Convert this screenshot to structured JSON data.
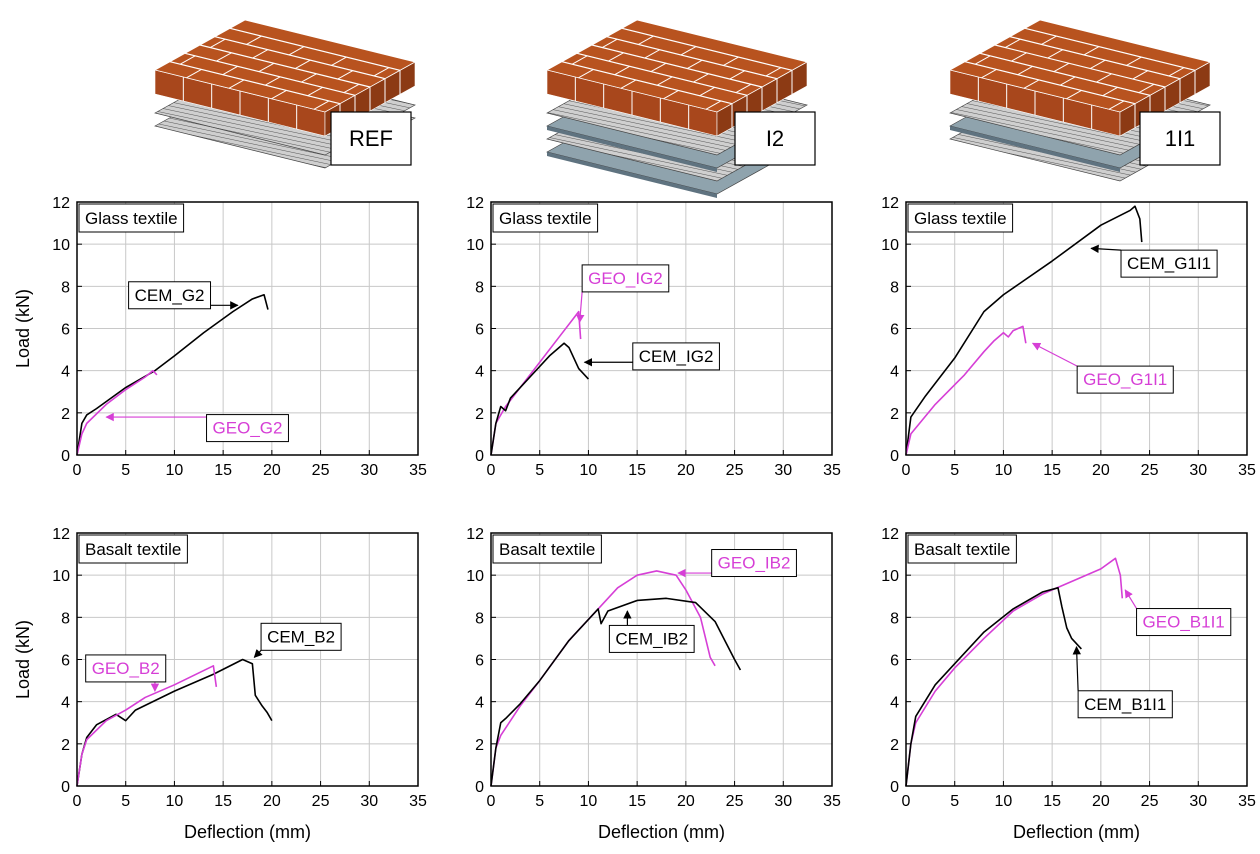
{
  "illustrations": [
    "REF",
    "I2",
    "1I1"
  ],
  "chart_data": [
    {
      "type": "line",
      "title": "Glass textile",
      "ylabel": "Load (kN)",
      "xlim": [
        0,
        35
      ],
      "ylim": [
        0,
        12
      ],
      "xticks": [
        0,
        5,
        10,
        15,
        20,
        25,
        30,
        35
      ],
      "yticks": [
        0,
        2,
        4,
        6,
        8,
        10,
        12
      ],
      "grid": true,
      "series": [
        {
          "name": "CEM_G2",
          "color": "#000000",
          "x": [
            0,
            0.5,
            1,
            2,
            5,
            8,
            10,
            13,
            16,
            18,
            19.2,
            19.6
          ],
          "values": [
            0,
            1.5,
            1.9,
            2.2,
            3.2,
            4,
            4.7,
            5.8,
            6.8,
            7.4,
            7.6,
            6.9
          ]
        },
        {
          "name": "GEO_G2",
          "color": "#d63fd6",
          "x": [
            0,
            0.5,
            1,
            3,
            5,
            7,
            7.8,
            8.2
          ],
          "values": [
            0,
            1,
            1.5,
            2.4,
            3.1,
            3.7,
            4,
            3.8
          ]
        }
      ]
    },
    {
      "type": "line",
      "title": "Glass textile",
      "xlim": [
        0,
        35
      ],
      "ylim": [
        0,
        12
      ],
      "xticks": [
        0,
        5,
        10,
        15,
        20,
        25,
        30,
        35
      ],
      "yticks": [
        0,
        2,
        4,
        6,
        8,
        10,
        12
      ],
      "grid": true,
      "series": [
        {
          "name": "GEO_IG2",
          "color": "#d63fd6",
          "x": [
            0,
            0.5,
            1.5,
            3,
            5,
            7,
            8.5,
            9,
            9.2
          ],
          "values": [
            0,
            1.5,
            2.3,
            3.2,
            4.4,
            5.6,
            6.5,
            6.8,
            5.5
          ]
        },
        {
          "name": "CEM_IG2",
          "color": "#000000",
          "x": [
            0,
            0.5,
            1,
            1.5,
            2,
            4,
            6,
            7.5,
            8,
            9,
            10
          ],
          "values": [
            0,
            1.5,
            2.3,
            2.1,
            2.7,
            3.7,
            4.7,
            5.3,
            5.1,
            4.1,
            3.6
          ]
        }
      ]
    },
    {
      "type": "line",
      "title": "Glass textile",
      "xlim": [
        0,
        35
      ],
      "ylim": [
        0,
        12
      ],
      "xticks": [
        0,
        5,
        10,
        15,
        20,
        25,
        30,
        35
      ],
      "yticks": [
        0,
        2,
        4,
        6,
        8,
        10,
        12
      ],
      "grid": true,
      "series": [
        {
          "name": "CEM_G1I1",
          "color": "#000000",
          "x": [
            0,
            0.5,
            2,
            5,
            8,
            10,
            15,
            20,
            23,
            23.5,
            24,
            24.2
          ],
          "values": [
            0,
            1.8,
            2.8,
            4.6,
            6.8,
            7.6,
            9.2,
            10.9,
            11.6,
            11.8,
            11.2,
            10.1
          ]
        },
        {
          "name": "GEO_G1I1",
          "color": "#d63fd6",
          "x": [
            0,
            0.5,
            3,
            6,
            8,
            9,
            10,
            10.5,
            11,
            12,
            12.3
          ],
          "values": [
            0,
            1,
            2.4,
            3.8,
            4.9,
            5.4,
            5.8,
            5.6,
            5.9,
            6.1,
            5.3
          ]
        }
      ]
    },
    {
      "type": "line",
      "title": "Basalt textile",
      "ylabel": "Load (kN)",
      "xlabel": "Deflection (mm)",
      "xlim": [
        0,
        35
      ],
      "ylim": [
        0,
        12
      ],
      "xticks": [
        0,
        5,
        10,
        15,
        20,
        25,
        30,
        35
      ],
      "yticks": [
        0,
        2,
        4,
        6,
        8,
        10,
        12
      ],
      "grid": true,
      "series": [
        {
          "name": "CEM_B2",
          "color": "#000000",
          "x": [
            0,
            0.5,
            1,
            2,
            4,
            5,
            6,
            10,
            14,
            17,
            18,
            18.3,
            19,
            19.5,
            20
          ],
          "values": [
            0,
            1.5,
            2.3,
            2.9,
            3.4,
            3.1,
            3.6,
            4.5,
            5.3,
            6,
            5.8,
            4.3,
            3.8,
            3.5,
            3.1
          ]
        },
        {
          "name": "GEO_B2",
          "color": "#d63fd6",
          "x": [
            0,
            0.5,
            1,
            3,
            5,
            7,
            10,
            14,
            14.3
          ],
          "values": [
            0,
            1.5,
            2.2,
            3.1,
            3.6,
            4.2,
            4.8,
            5.7,
            4.7
          ]
        }
      ]
    },
    {
      "type": "line",
      "title": "Basalt textile",
      "xlabel": "Deflection (mm)",
      "xlim": [
        0,
        35
      ],
      "ylim": [
        0,
        12
      ],
      "xticks": [
        0,
        5,
        10,
        15,
        20,
        25,
        30,
        35
      ],
      "yticks": [
        0,
        2,
        4,
        6,
        8,
        10,
        12
      ],
      "grid": true,
      "series": [
        {
          "name": "GEO_IB2",
          "color": "#d63fd6",
          "x": [
            0,
            0.5,
            1,
            3,
            5,
            8,
            11,
            13,
            15,
            17,
            19,
            20,
            21.5,
            22.5,
            23
          ],
          "values": [
            0,
            1.8,
            2.4,
            3.8,
            5,
            6.9,
            8.4,
            9.4,
            10,
            10.2,
            10,
            9.3,
            8,
            6.1,
            5.7
          ]
        },
        {
          "name": "CEM_IB2",
          "color": "#000000",
          "x": [
            0,
            0.5,
            1,
            1.5,
            3,
            5,
            8,
            11,
            11.3,
            12,
            15,
            18,
            21,
            23,
            25,
            25.6
          ],
          "values": [
            0,
            1.8,
            3,
            3.2,
            3.9,
            5,
            6.9,
            8.4,
            7.7,
            8.3,
            8.8,
            8.9,
            8.7,
            7.8,
            6,
            5.5
          ]
        }
      ]
    },
    {
      "type": "line",
      "title": "Basalt textile",
      "xlabel": "Deflection (mm)",
      "xlim": [
        0,
        35
      ],
      "ylim": [
        0,
        12
      ],
      "xticks": [
        0,
        5,
        10,
        15,
        20,
        25,
        30,
        35
      ],
      "yticks": [
        0,
        2,
        4,
        6,
        8,
        10,
        12
      ],
      "grid": true,
      "series": [
        {
          "name": "GEO_B1I1",
          "color": "#d63fd6",
          "x": [
            0,
            0.5,
            1,
            3,
            5,
            8,
            11,
            14,
            17,
            20,
            21.5,
            22,
            22.2
          ],
          "values": [
            0,
            2,
            3,
            4.5,
            5.6,
            7,
            8.3,
            9.1,
            9.7,
            10.3,
            10.8,
            10,
            8.9
          ]
        },
        {
          "name": "CEM_B1I1",
          "color": "#000000",
          "x": [
            0,
            0.5,
            1,
            3,
            5,
            8,
            11,
            14,
            15.6,
            16,
            16.5,
            17,
            18
          ],
          "values": [
            0,
            2,
            3.3,
            4.8,
            5.8,
            7.3,
            8.4,
            9.2,
            9.4,
            8.5,
            7.5,
            7,
            6.5
          ]
        }
      ]
    }
  ]
}
